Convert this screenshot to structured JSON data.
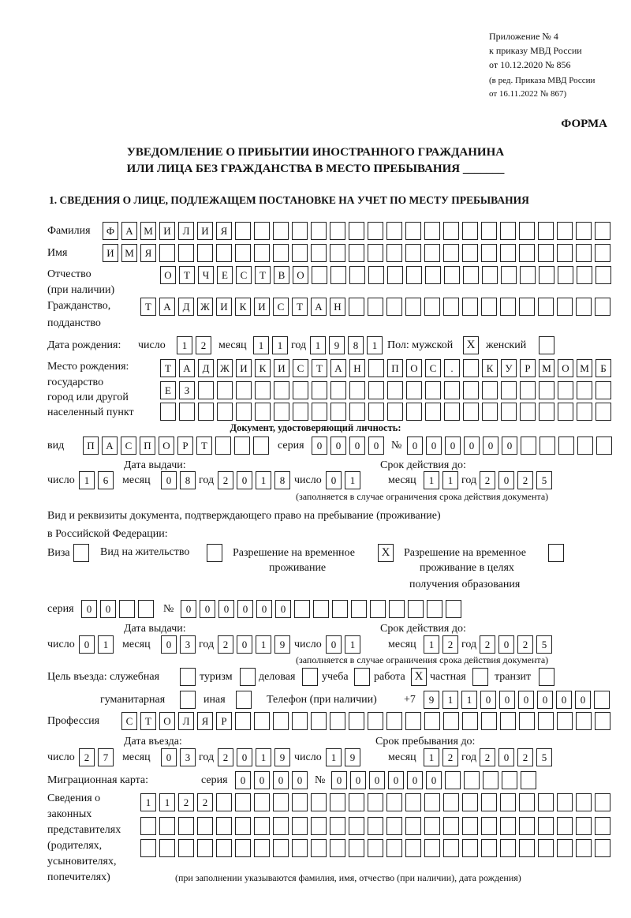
{
  "header": {
    "appendix": "Приложение № 4",
    "order": "к приказу МВД России",
    "order_date": "от 10.12.2020 № 856",
    "edition1": "(в ред. Приказа МВД России",
    "edition2": "от 16.11.2022 № 867)",
    "form_label": "ФОРМА",
    "title1": "УВЕДОМЛЕНИЕ О ПРИБЫТИИ ИНОСТРАННОГО ГРАЖДАНИНА",
    "title2": "ИЛИ ЛИЦА БЕЗ ГРАЖДАНСТВА В МЕСТО ПРЕБЫВАНИЯ _______",
    "section1": "1. СВЕДЕНИЯ О ЛИЦЕ, ПОДЛЕЖАЩЕМ ПОСТАНОВКЕ НА УЧЕТ ПО МЕСТУ ПРЕБЫВАНИЯ"
  },
  "labels": {
    "surname": "Фамилия",
    "name": "Имя",
    "patronymic1": "Отчество",
    "patronymic2": "(при наличии)",
    "citizenship1": "Гражданство,",
    "citizenship2": "подданство",
    "dob": "Дата рождения:",
    "day": "число",
    "month": "месяц",
    "year": "год",
    "sex": "Пол: мужской",
    "female": "женский",
    "birthplace1": "Место рождения:",
    "birthplace2": "государство",
    "birthplace3": "город или другой",
    "birthplace4": "населенный пункт",
    "id_doc": "Документ, удостоверяющий личность:",
    "kind": "вид",
    "series": "серия",
    "number": "№",
    "issue_date": "Дата выдачи:",
    "valid_until": "Срок действия до:",
    "valid_note": "(заполняется в случае ограничения срока действия документа)",
    "right_doc1": "Вид и реквизиты документа, подтверждающего право на пребывание (проживание)",
    "right_doc2": "в Российской Федерации:",
    "visa": "Виза",
    "residence": "Вид на жительство",
    "trp1": "Разрешение на временное",
    "trp2": "проживание",
    "trpe1": "Разрешение на временное",
    "trpe2": "проживание в целях",
    "trpe3": "получения образования",
    "purpose": "Цель въезда: служебная",
    "tourism": "туризм",
    "business": "деловая",
    "study": "учеба",
    "work": "работа",
    "private": "частная",
    "transit": "транзит",
    "humanitarian": "гуманитарная",
    "other": "иная",
    "phone": "Телефон (при наличии)",
    "phone_prefix": "+7",
    "profession": "Профессия",
    "entry_date": "Дата въезда:",
    "stay_until": "Срок пребывания до:",
    "migration_card": "Миграционная карта:",
    "reps1": "Сведения о",
    "reps2": "законных",
    "reps3": "представителях",
    "reps4": "(родителях,",
    "reps5": "усыновителях,",
    "reps6": "попечителях)",
    "reps_note": "(при заполнении указываются фамилия, имя, отчество (при наличии), дата рождения)"
  },
  "person": {
    "surname": "ФАМИЛИЯ",
    "name": "ИМЯ",
    "patronymic": "ОТЧЕСТВО",
    "citizenship": "ТАДЖИКИСТАН",
    "dob": {
      "day": "12",
      "month": "11",
      "year": "1981"
    },
    "sex_male": true,
    "sex_female": false,
    "birthplace": [
      "ТАДЖИКИСТАН ПОС. КУРМОМБ",
      "ЕЗ",
      ""
    ]
  },
  "id_document": {
    "kind": "ПАСПОРТ",
    "series": "0000",
    "number": "000000",
    "issue": {
      "day": "16",
      "month": "08",
      "year": "2018"
    },
    "valid": {
      "day": "01",
      "month": "11",
      "year": "2025"
    }
  },
  "right_document": {
    "visa": false,
    "residence_permit": false,
    "temporary_residence": true,
    "temporary_residence_education": false,
    "series": "00",
    "number": "000000",
    "issue": {
      "day": "01",
      "month": "03",
      "year": "2019"
    },
    "valid": {
      "day": "01",
      "month": "12",
      "year": "2025"
    }
  },
  "purpose": {
    "official": false,
    "tourism": false,
    "business": false,
    "study": false,
    "work": true,
    "private": false,
    "transit": false,
    "humanitarian": false,
    "other": false
  },
  "phone": "911000000",
  "profession": "СТОЛЯР",
  "entry": {
    "day": "27",
    "month": "03",
    "year": "2019"
  },
  "stay_until": {
    "day": "19",
    "month": "12",
    "year": "2025"
  },
  "migration_card": {
    "series": "0000",
    "number": "000000"
  },
  "representatives": [
    "1122",
    "",
    ""
  ],
  "check_mark": "X"
}
